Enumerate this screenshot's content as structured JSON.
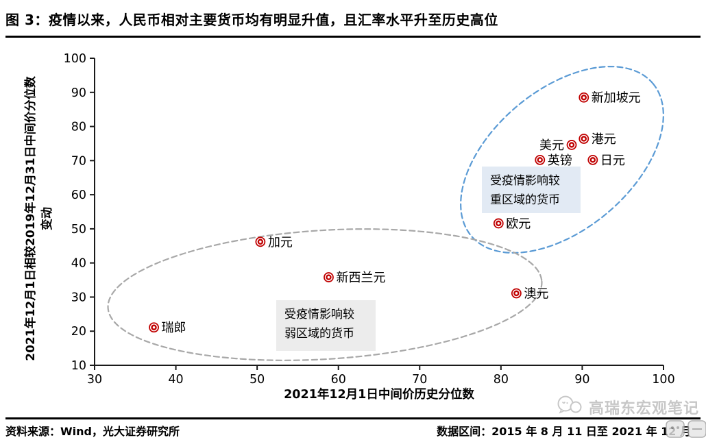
{
  "header": {
    "title": "图 3：疫情以来，人民币相对主要货币均有明显升值，且汇率水平升至历史高位"
  },
  "footer": {
    "source": "资料来源：Wind，光大证券研究所",
    "data_range": "数据区间：2015 年 8 月 11 日至 2021 年 12 月"
  },
  "watermark": {
    "text": "高瑞东宏观笔记",
    "icon": "wechat-logo-icon"
  },
  "chart_data": {
    "type": "scatter",
    "title": "",
    "xlabel": "2021年12月1日中间价历史分位数",
    "ylabel": "2021年12月1日相较2019年12月31日中间价分位数变动",
    "ylabel_line1": "2021年12月1日相较2019年12月31日中间价分位数",
    "ylabel_line2": "变动",
    "xlim": [
      30,
      100
    ],
    "ylim": [
      10,
      100
    ],
    "xticks": [
      30,
      40,
      50,
      60,
      70,
      80,
      90,
      100
    ],
    "yticks": [
      10,
      20,
      30,
      40,
      50,
      60,
      70,
      80,
      90,
      100
    ],
    "grid": false,
    "legend": false,
    "marker_color": "#C00000",
    "axis_color": "#1a1a1a",
    "points": [
      {
        "name": "新加坡元",
        "x": 90.2,
        "y": 88.5,
        "label_side": "right"
      },
      {
        "name": "港元",
        "x": 90.2,
        "y": 76.4,
        "label_side": "right"
      },
      {
        "name": "美元",
        "x": 88.7,
        "y": 74.6,
        "label_side": "left"
      },
      {
        "name": "英镑",
        "x": 84.8,
        "y": 70.2,
        "label_side": "right"
      },
      {
        "name": "日元",
        "x": 91.3,
        "y": 70.2,
        "label_side": "right"
      },
      {
        "name": "欧元",
        "x": 79.7,
        "y": 51.6,
        "label_side": "right"
      },
      {
        "name": "加元",
        "x": 50.4,
        "y": 46.2,
        "label_side": "right"
      },
      {
        "name": "新西兰元",
        "x": 58.8,
        "y": 35.8,
        "label_side": "right"
      },
      {
        "name": "澳元",
        "x": 81.9,
        "y": 31.1,
        "label_side": "right"
      },
      {
        "name": "瑞郎",
        "x": 37.3,
        "y": 21.1,
        "label_side": "right"
      }
    ],
    "groups": [
      {
        "label": "受疫情影响较重区域的货币",
        "members": [
          "新加坡元",
          "港元",
          "美元",
          "英镑",
          "日元",
          "欧元"
        ],
        "ellipse_color": "#5B9BD5",
        "ellipse_style": "dashed"
      },
      {
        "label": "受疫情影响较弱区域的货币",
        "members": [
          "加元",
          "新西兰元",
          "澳元",
          "瑞郎"
        ],
        "ellipse_color": "#A8A8A8",
        "ellipse_style": "dashed"
      }
    ],
    "annotations": [
      {
        "line1": "受疫情影响较",
        "line2": "重区域的货币",
        "bg": "#E2EAF4"
      },
      {
        "line1": "受疫情影响较",
        "line2": "弱区域的货币",
        "bg": "#ECECEC"
      }
    ]
  }
}
